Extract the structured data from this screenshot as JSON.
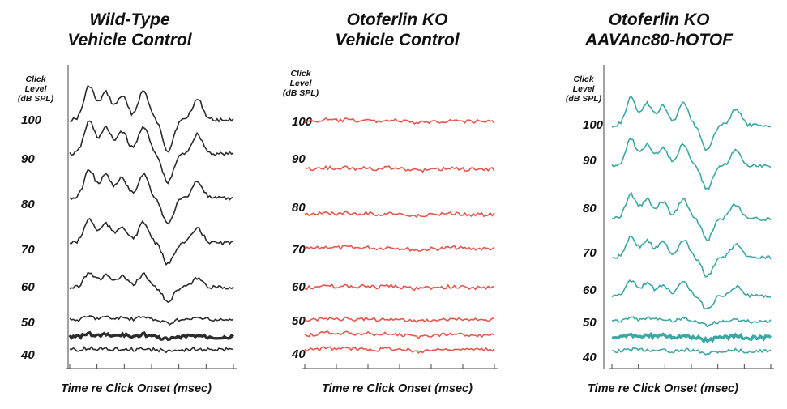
{
  "chart_data": [
    {
      "type": "line",
      "title": "Wild-Type\nVehicle Control",
      "ylabel": "Click\nLevel\n(dB SPL)",
      "xlabel": "Time re Click Onset (msec)",
      "levels": [
        "100",
        "90",
        "80",
        "70",
        "60",
        "50",
        "40"
      ],
      "color": "#2b2b2b",
      "response_amplitude": [
        1.0,
        0.95,
        0.85,
        0.7,
        0.45,
        0.1,
        0.05
      ],
      "emphasized_trace_between": [
        "50",
        "40"
      ]
    },
    {
      "type": "line",
      "title": "Otoferlin KO\nVehicle Control",
      "ylabel": "Click\nLevel\n(dB SPL)",
      "xlabel": "Time re Click Onset (msec)",
      "levels": [
        "100",
        "90",
        "80",
        "70",
        "60",
        "50",
        "40"
      ],
      "color": "#e8544a",
      "response_amplitude": [
        0.05,
        0.05,
        0.05,
        0.05,
        0.05,
        0.05,
        0.05
      ],
      "extra_trace_between": [
        "50",
        "40"
      ]
    },
    {
      "type": "line",
      "title": "Otoferlin KO\nAAVAnc80-hOTOF",
      "ylabel": "Click\nLevel\n(dB SPL)",
      "xlabel": "Time re Click Onset (msec)",
      "levels": [
        "100",
        "90",
        "80",
        "70",
        "60",
        "50",
        "40"
      ],
      "color": "#3aa8a3",
      "response_amplitude": [
        0.8,
        0.78,
        0.7,
        0.62,
        0.45,
        0.12,
        0.06
      ],
      "emphasized_trace_between": [
        "50",
        "40"
      ]
    }
  ]
}
